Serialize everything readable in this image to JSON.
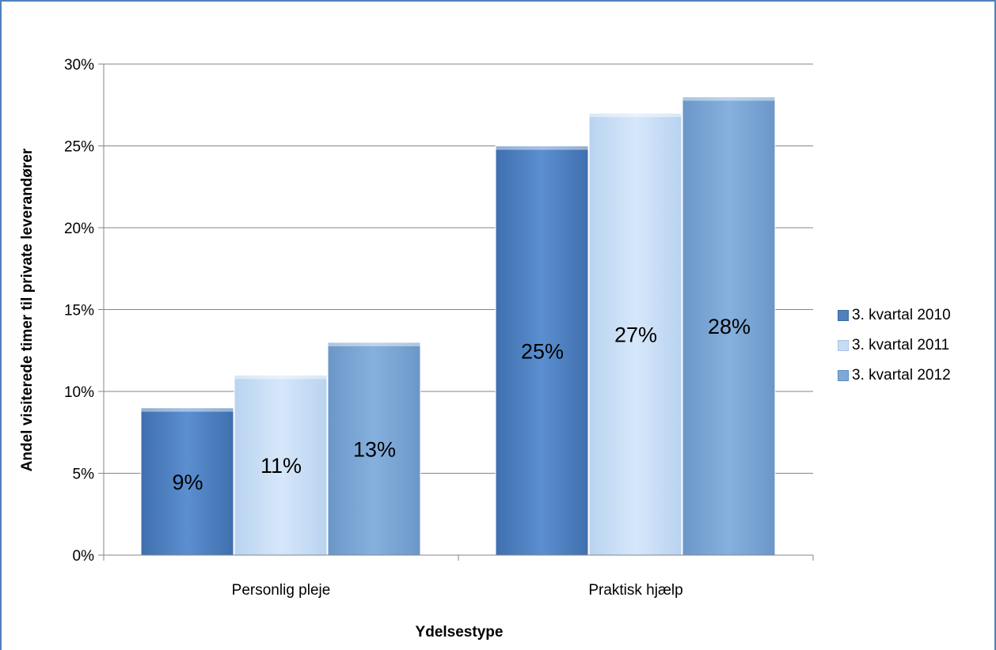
{
  "chart_data": {
    "type": "bar",
    "categories": [
      "Personlig pleje",
      "Praktisk hjælp"
    ],
    "series": [
      {
        "name": "3. kvartal 2010",
        "values": [
          9,
          25
        ],
        "labels": [
          "9%",
          "25%"
        ],
        "color": "#4f81bd"
      },
      {
        "name": "3. kvartal 2011",
        "values": [
          11,
          27
        ],
        "labels": [
          "11%",
          "27%"
        ],
        "color": "#c6dcf5"
      },
      {
        "name": "3. kvartal 2012",
        "values": [
          13,
          28
        ],
        "labels": [
          "13%",
          "28%"
        ],
        "color": "#7ea8d6"
      }
    ],
    "xlabel": "Ydelsestype",
    "ylabel": "Andel visiterede timer til private leverandører",
    "ylim": [
      0,
      30
    ],
    "yticks": [
      {
        "value": 0,
        "label": "0%"
      },
      {
        "value": 5,
        "label": "5%"
      },
      {
        "value": 10,
        "label": "10%"
      },
      {
        "value": 15,
        "label": "15%"
      },
      {
        "value": 20,
        "label": "20%"
      },
      {
        "value": 25,
        "label": "25%"
      },
      {
        "value": 30,
        "label": "30%"
      }
    ],
    "grid": true,
    "legend_position": "right"
  }
}
